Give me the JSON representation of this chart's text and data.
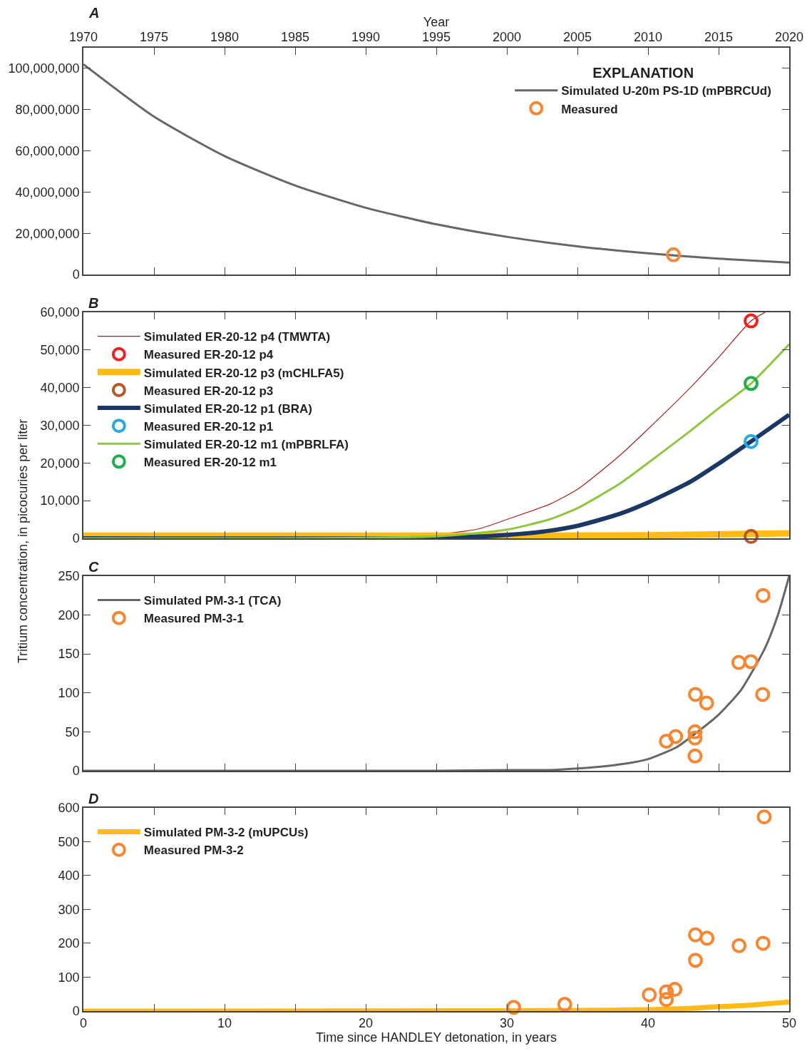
{
  "chart_data": [
    {
      "type": "line",
      "title": "A",
      "xlim": [
        0,
        50
      ],
      "xticks": [
        {
          "value": 0,
          "label": null
        },
        {
          "value": 5,
          "label": null
        },
        {
          "value": 10,
          "label": null
        },
        {
          "value": 15,
          "label": null
        },
        {
          "value": 20,
          "label": null
        },
        {
          "value": 25,
          "label": null
        },
        {
          "value": 30,
          "label": null
        },
        {
          "value": 35,
          "label": null
        },
        {
          "value": 40,
          "label": null
        },
        {
          "value": 45,
          "label": null
        },
        {
          "value": 50,
          "label": null
        }
      ],
      "x2label": "Year",
      "x2lim": [
        1970,
        2020
      ],
      "x2ticks": [
        1970,
        1975,
        1980,
        1985,
        1990,
        1995,
        2000,
        2005,
        2010,
        2015,
        2020
      ],
      "ylim": [
        0,
        110000000
      ],
      "yticks": [
        {
          "value": 0,
          "label": "0"
        },
        {
          "value": 20000000,
          "label": "20,000,000"
        },
        {
          "value": 40000000,
          "label": "40,000,000"
        },
        {
          "value": 60000000,
          "label": "60,000,000"
        },
        {
          "value": 80000000,
          "label": "80,000,000"
        },
        {
          "value": 100000000,
          "label": "100,000,000"
        }
      ],
      "tick_labels": "y",
      "legend": "top right",
      "legend_title": "EXPLANATION",
      "line_style": "solid",
      "series": [
        {
          "name": "Simulated U-20m PS-1D (mPBRCUd)",
          "color": "#666666",
          "x": [
            0,
            5,
            10,
            15,
            20,
            25,
            30,
            35,
            40,
            45,
            50
          ],
          "values": [
            102000000,
            76600000,
            57500000,
            43200000,
            32400000,
            24400000,
            18300000,
            13700000,
            10300000,
            7700000,
            5800000
          ]
        },
        {
          "name": "Measured",
          "type": "scatter",
          "marker": "circle",
          "color": "#f58634",
          "x": [
            41.8
          ],
          "values": [
            9600000
          ]
        }
      ]
    },
    {
      "type": "line",
      "title": "B",
      "ylabel": "Tritium concentration, in picocuries per liter",
      "xlim": [
        0,
        50
      ],
      "xticks": [
        {
          "value": 0,
          "label": null
        },
        {
          "value": 5,
          "label": null
        },
        {
          "value": 10,
          "label": null
        },
        {
          "value": 15,
          "label": null
        },
        {
          "value": 20,
          "label": null
        },
        {
          "value": 25,
          "label": null
        },
        {
          "value": 30,
          "label": null
        },
        {
          "value": 35,
          "label": null
        },
        {
          "value": 40,
          "label": null
        },
        {
          "value": 45,
          "label": null
        },
        {
          "value": 50,
          "label": null
        }
      ],
      "ylim": [
        0,
        60000
      ],
      "yticks": [
        {
          "value": 0,
          "label": "0"
        },
        {
          "value": 10000,
          "label": "10,000"
        },
        {
          "value": 20000,
          "label": "20,000"
        },
        {
          "value": 30000,
          "label": "30,000"
        },
        {
          "value": 40000,
          "label": "40,000"
        },
        {
          "value": 50000,
          "label": "50,000"
        },
        {
          "value": 60000,
          "label": "60,000"
        }
      ],
      "tick_labels": "y",
      "legend": "top left",
      "line_style": "solid",
      "series": [
        {
          "name": "Simulated ER-20-12 p4 (TMWTA)",
          "color": "#a31f24",
          "x": [
            0,
            20,
            25,
            28,
            30,
            33,
            35,
            38,
            40,
            43,
            45,
            47.3,
            48.3
          ],
          "values": [
            0,
            200,
            1000,
            2500,
            5000,
            9000,
            13000,
            22000,
            29000,
            40000,
            48000,
            57700,
            60000
          ]
        },
        {
          "name": "Measured ER-20-12 p4",
          "type": "scatter",
          "marker": "circle",
          "color": "#ee2024",
          "x": [
            47.3
          ],
          "values": [
            57700
          ]
        },
        {
          "name": "Simulated ER-20-12 p3 (mCHLFA5)",
          "color": "#fdbb13",
          "x": [
            0,
            30,
            40,
            50
          ],
          "values": [
            700,
            700,
            800,
            1300
          ]
        },
        {
          "name": "Measured ER-20-12 p3",
          "type": "scatter",
          "marker": "circle",
          "color": "#b8572a",
          "x": [
            47.3
          ],
          "values": [
            500
          ]
        },
        {
          "name": "Simulated ER-20-12 p1 (BRA)",
          "color": "#1b3764",
          "x": [
            0,
            25,
            30,
            33,
            35,
            38,
            40,
            43,
            45,
            47.3,
            50
          ],
          "values": [
            0,
            100,
            900,
            2000,
            3300,
            6500,
            9500,
            15000,
            19800,
            25700,
            32800
          ]
        },
        {
          "name": "Measured ER-20-12 p1",
          "type": "scatter",
          "marker": "circle",
          "color": "#27aae1",
          "x": [
            47.3
          ],
          "values": [
            25700
          ]
        },
        {
          "name": "Simulated ER-20-12 m1 (mPBRLFA)",
          "color": "#8dc63f",
          "x": [
            0,
            25,
            30,
            33,
            35,
            38,
            40,
            43,
            45,
            47.3,
            50
          ],
          "values": [
            0,
            500,
            2300,
            5000,
            8000,
            14500,
            20000,
            28500,
            34500,
            41100,
            51500
          ]
        },
        {
          "name": "Measured ER-20-12 m1",
          "type": "scatter",
          "marker": "circle",
          "color": "#1fae4b",
          "x": [
            47.3
          ],
          "values": [
            41100
          ]
        }
      ]
    },
    {
      "type": "line",
      "title": "C",
      "xlim": [
        0,
        50
      ],
      "xticks": [
        {
          "value": 0,
          "label": null
        },
        {
          "value": 5,
          "label": null
        },
        {
          "value": 10,
          "label": null
        },
        {
          "value": 15,
          "label": null
        },
        {
          "value": 20,
          "label": null
        },
        {
          "value": 25,
          "label": null
        },
        {
          "value": 30,
          "label": null
        },
        {
          "value": 35,
          "label": null
        },
        {
          "value": 40,
          "label": null
        },
        {
          "value": 45,
          "label": null
        },
        {
          "value": 50,
          "label": null
        }
      ],
      "ylim": [
        0,
        250
      ],
      "yticks": [
        0,
        50,
        100,
        150,
        200,
        250
      ],
      "tick_labels": "y",
      "legend": "top left",
      "line_style": "solid",
      "series": [
        {
          "name": "Simulated PM-3-1 (TCA)",
          "color": "#666666",
          "x": [
            0,
            25,
            30,
            33,
            35,
            37,
            39,
            40,
            42,
            43.3,
            45,
            46.6,
            48.3,
            49.2,
            50
          ],
          "values": [
            0,
            0,
            1,
            1,
            3,
            6,
            11,
            15,
            30,
            47,
            72,
            104,
            158,
            200,
            250
          ]
        },
        {
          "name": "Measured PM-3-1",
          "type": "scatter",
          "marker": "circle",
          "color": "#f58634",
          "x": [
            48.15,
            46.43,
            47.29,
            48.12,
            43.36,
            44.15,
            41.3,
            41.96,
            43.33,
            43.33,
            43.33
          ],
          "values": [
            225,
            139,
            140,
            98,
            98,
            87,
            38,
            44,
            50,
            42,
            19
          ]
        }
      ]
    },
    {
      "type": "line",
      "title": "D",
      "xlabel": "Time since HANDLEY detonation, in years",
      "xlim": [
        0,
        50
      ],
      "xticks": [
        0,
        {
          "value": 5,
          "label": null
        },
        10,
        {
          "value": 15,
          "label": null
        },
        20,
        {
          "value": 25,
          "label": null
        },
        30,
        {
          "value": 35,
          "label": null
        },
        40,
        {
          "value": 45,
          "label": null
        },
        50
      ],
      "ylim": [
        0,
        600
      ],
      "yticks": [
        0,
        100,
        200,
        300,
        400,
        500,
        600
      ],
      "legend": "top left",
      "line_style": "solid",
      "series": [
        {
          "name": "Simulated PM-3-2 (mUPCUs)",
          "color": "#fdbb13",
          "x": [
            0,
            30,
            35,
            40,
            43,
            45,
            47,
            50
          ],
          "values": [
            0,
            1,
            2,
            4,
            8,
            13,
            17,
            27
          ]
        },
        {
          "name": "Measured PM-3-2",
          "type": "scatter",
          "marker": "circle",
          "color": "#f58634",
          "x": [
            30.48,
            34.1,
            40.09,
            41.3,
            41.9,
            41.3,
            43.36,
            44.18,
            43.36,
            46.45,
            48.15,
            48.23
          ],
          "values": [
            11,
            20,
            48,
            57,
            64,
            34,
            225,
            215,
            150,
            193,
            200,
            573
          ]
        }
      ]
    }
  ]
}
